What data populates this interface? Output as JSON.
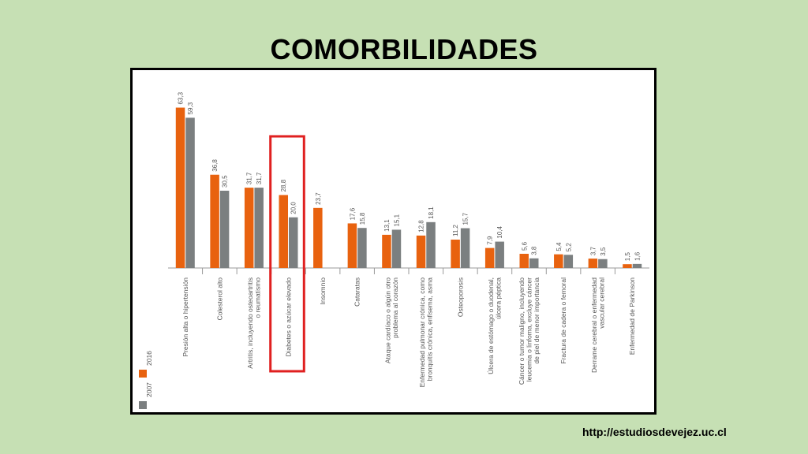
{
  "slide": {
    "title": "COMORBILIDADES",
    "url": "http://estudiosdevejez.uc.cl"
  },
  "chart_data": {
    "type": "bar",
    "categories": [
      "Presión alta o hipertensión",
      "Colesterol alto",
      "Artritis, incluyendo osteoartritis o reumatismo",
      "Diabetes o azúcar elevado",
      "Insomnio",
      "Cataratas",
      "Ataque cardíaco o algún otro problema al corazón",
      "Enfermedad pulmonar crónica, como bronquitis crónica, enfisema, asma",
      "Osteoporosis",
      "Úlcera de estómago o duodenal, úlcera péptica",
      "Cáncer o tumor maligno, incluyendo leucemia o linfoma, excluye cáncer de piel de menor importancia",
      "Fractura de cadera o femoral",
      "Derrame cerebral o enfermedad vascular cerebral",
      "Enfermedad de Parkinson"
    ],
    "category_lines": [
      [
        "Presión alta o hipertensión"
      ],
      [
        "Colesterol alto"
      ],
      [
        "Artritis, incluyendo osteoartritis",
        "o reumatismo"
      ],
      [
        "Diabetes o azúcar elevado"
      ],
      [
        "Insomnio"
      ],
      [
        "Cataratas"
      ],
      [
        "Ataque cardíaco o algún otro",
        "problema al corazón"
      ],
      [
        "Enfermedad pulmonar crónica, como",
        "bronquitis crónica, enfisema, asma"
      ],
      [
        "Osteoporosis"
      ],
      [
        "Úlcera de estómago o duodenal,",
        "úlcera péptica"
      ],
      [
        "Cáncer o tumor maligno, incluyendo",
        "leucemia o linfoma, excluye cáncer",
        "de piel de menor importancia"
      ],
      [
        "Fractura de cadera o femoral"
      ],
      [
        "Derrame cerebral o enfermedad",
        "vascular cerebral"
      ],
      [
        "Enfermedad de Parkinson"
      ]
    ],
    "series": [
      {
        "name": "2016",
        "color": "#e8620f",
        "values": [
          63.3,
          36.8,
          31.7,
          28.8,
          23.7,
          17.6,
          13.1,
          12.8,
          11.2,
          7.9,
          5.6,
          5.4,
          3.7,
          1.5
        ],
        "labels": [
          "63,3",
          "36,8",
          "31,7",
          "28,8",
          "23,7",
          "17,6",
          "13,1",
          "12,8",
          "11,2",
          "7,9",
          "5,6",
          "5,4",
          "3,7",
          "1,5"
        ]
      },
      {
        "name": "2007",
        "color": "#7b7f80",
        "values": [
          59.3,
          30.5,
          31.7,
          20.0,
          null,
          15.8,
          15.1,
          18.1,
          15.7,
          10.4,
          3.8,
          5.2,
          3.5,
          1.6
        ],
        "labels": [
          "59,3",
          "30,5",
          "31,7",
          "20,0",
          null,
          "15,8",
          "15,1",
          "18,1",
          "15,7",
          "10,4",
          "3,8",
          "5,2",
          "3,5",
          "1,6"
        ]
      }
    ],
    "ylim": [
      0,
      70
    ],
    "highlight_category_index": 3,
    "highlight_color": "#e02020",
    "legend_position": "bottom-left"
  }
}
